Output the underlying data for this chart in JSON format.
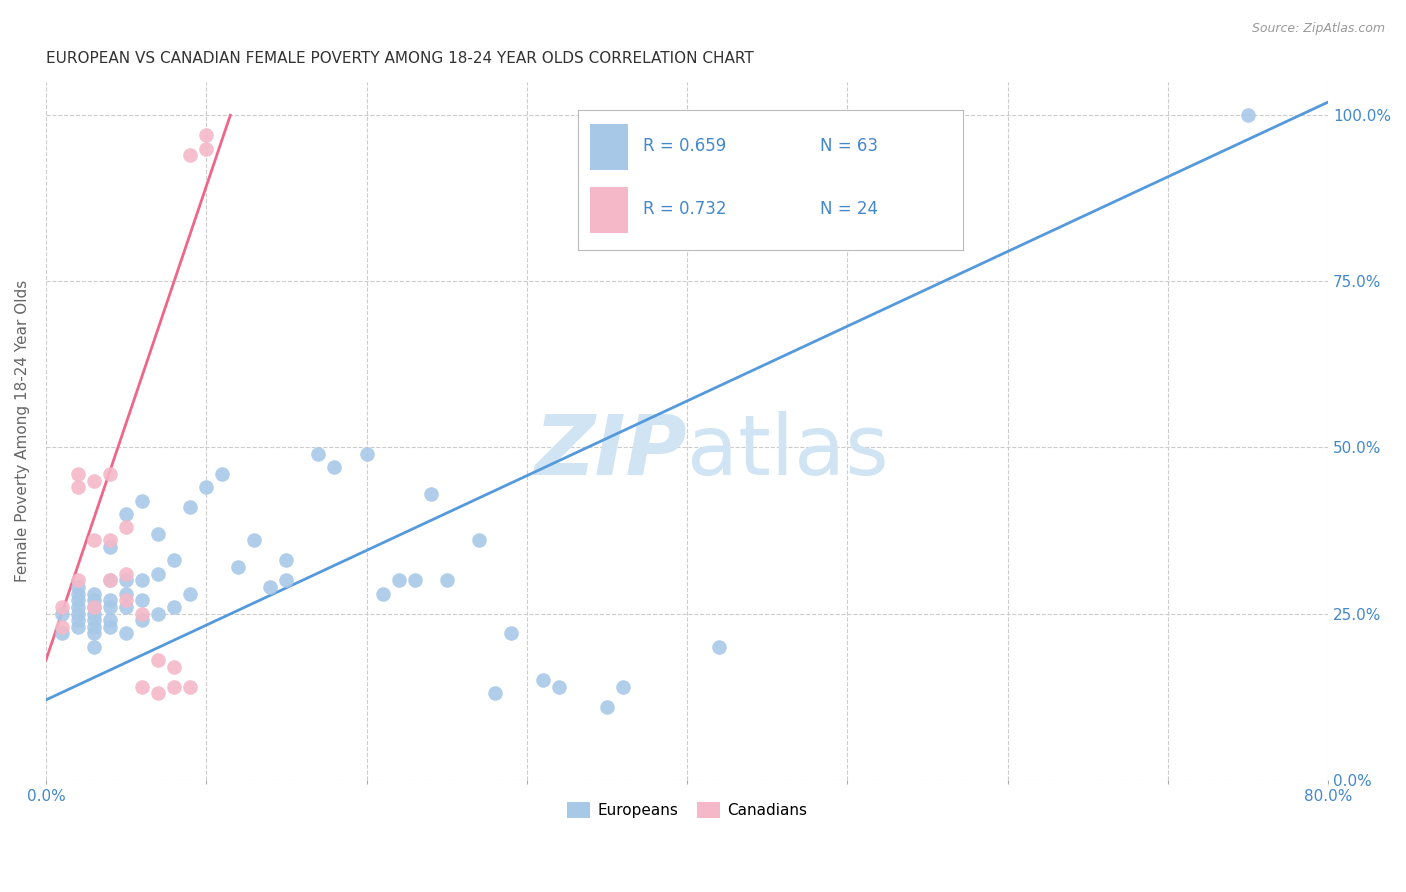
{
  "title": "EUROPEAN VS CANADIAN FEMALE POVERTY AMONG 18-24 YEAR OLDS CORRELATION CHART",
  "source": "Source: ZipAtlas.com",
  "ylabel": "Female Poverty Among 18-24 Year Olds",
  "xlim": [
    0.0,
    0.8
  ],
  "ylim": [
    0.0,
    1.05
  ],
  "x_ticks": [
    0.0,
    0.1,
    0.2,
    0.3,
    0.4,
    0.5,
    0.6,
    0.7,
    0.8
  ],
  "x_tick_labels": [
    "0.0%",
    "",
    "",
    "",
    "",
    "",
    "",
    "",
    "80.0%"
  ],
  "y_ticks_right": [
    0.0,
    0.25,
    0.5,
    0.75,
    1.0
  ],
  "y_tick_labels_right": [
    "0.0%",
    "25.0%",
    "50.0%",
    "75.0%",
    "100.0%"
  ],
  "blue_color": "#a8c8e8",
  "pink_color": "#f4b8c8",
  "blue_line_color": "#5599dd",
  "pink_line_color": "#ee6688",
  "watermark_color": "#d0e4f4",
  "blue_label": "Europeans",
  "pink_label": "Canadians",
  "legend_R_color": "#4488cc",
  "europeans_x": [
    0.01,
    0.01,
    0.02,
    0.02,
    0.02,
    0.02,
    0.02,
    0.02,
    0.02,
    0.03,
    0.03,
    0.03,
    0.03,
    0.03,
    0.03,
    0.03,
    0.03,
    0.04,
    0.04,
    0.04,
    0.04,
    0.04,
    0.04,
    0.05,
    0.05,
    0.05,
    0.05,
    0.05,
    0.06,
    0.06,
    0.06,
    0.06,
    0.07,
    0.07,
    0.07,
    0.08,
    0.08,
    0.09,
    0.09,
    0.1,
    0.11,
    0.12,
    0.13,
    0.14,
    0.15,
    0.15,
    0.17,
    0.18,
    0.2,
    0.21,
    0.22,
    0.23,
    0.24,
    0.25,
    0.27,
    0.28,
    0.29,
    0.31,
    0.32,
    0.35,
    0.36,
    0.42,
    0.75
  ],
  "europeans_y": [
    0.22,
    0.25,
    0.23,
    0.24,
    0.25,
    0.26,
    0.27,
    0.28,
    0.29,
    0.2,
    0.22,
    0.23,
    0.24,
    0.25,
    0.26,
    0.27,
    0.28,
    0.23,
    0.24,
    0.26,
    0.27,
    0.3,
    0.35,
    0.22,
    0.26,
    0.28,
    0.3,
    0.4,
    0.24,
    0.27,
    0.3,
    0.42,
    0.25,
    0.31,
    0.37,
    0.26,
    0.33,
    0.28,
    0.41,
    0.44,
    0.46,
    0.32,
    0.36,
    0.29,
    0.3,
    0.33,
    0.49,
    0.47,
    0.49,
    0.28,
    0.3,
    0.3,
    0.43,
    0.3,
    0.36,
    0.13,
    0.22,
    0.15,
    0.14,
    0.11,
    0.14,
    0.2,
    1.0
  ],
  "canadians_x": [
    0.01,
    0.01,
    0.02,
    0.02,
    0.02,
    0.03,
    0.03,
    0.03,
    0.04,
    0.04,
    0.04,
    0.05,
    0.05,
    0.05,
    0.06,
    0.06,
    0.07,
    0.07,
    0.08,
    0.08,
    0.09,
    0.09,
    0.1,
    0.1
  ],
  "canadians_y": [
    0.23,
    0.26,
    0.3,
    0.44,
    0.46,
    0.26,
    0.36,
    0.45,
    0.3,
    0.36,
    0.46,
    0.27,
    0.31,
    0.38,
    0.14,
    0.25,
    0.13,
    0.18,
    0.14,
    0.17,
    0.14,
    0.94,
    0.95,
    0.97
  ],
  "blue_trendline_x": [
    0.0,
    0.8
  ],
  "blue_trendline_y": [
    0.12,
    1.02
  ],
  "pink_trendline_x": [
    0.0,
    0.115
  ],
  "pink_trendline_y": [
    0.18,
    1.0
  ]
}
